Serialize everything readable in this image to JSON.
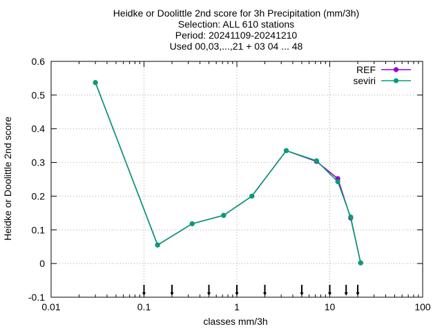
{
  "chart_data": {
    "type": "line",
    "title_lines": [
      "Heidke or Doolittle 2nd score  for 3h Precipitation (mm/3h)",
      "Selection: ALL    610 stations",
      "Period: 20241109-20241210",
      "Used 00,03,...,21 + 03 04 ... 48"
    ],
    "xlabel": "classes mm/3h",
    "ylabel": "Heidke or Doolittle 2nd score",
    "x_scale": "log",
    "xlim": [
      0.01,
      100
    ],
    "ylim": [
      -0.1,
      0.6
    ],
    "x_ticks": [
      0.01,
      0.1,
      1,
      10,
      100
    ],
    "x_tick_labels": [
      "0.01",
      "0.1",
      "1",
      "10",
      "100"
    ],
    "y_ticks": [
      -0.1,
      0,
      0.1,
      0.2,
      0.3,
      0.4,
      0.5,
      0.6
    ],
    "y_tick_labels": [
      "-0.1",
      "0",
      "0.1",
      "0.2",
      "0.3",
      "0.4",
      "0.5",
      "0.6"
    ],
    "grid": true,
    "legend_position": "top-right",
    "x": [
      0.03,
      0.14,
      0.33,
      0.72,
      1.45,
      3.4,
      7.2,
      12.2,
      16.8,
      21.5
    ],
    "series": [
      {
        "name": "REF",
        "color": "#9400d3",
        "values": [
          0.537,
          0.055,
          0.118,
          0.143,
          0.2,
          0.335,
          0.303,
          0.252,
          0.135,
          0.002
        ]
      },
      {
        "name": "seviri",
        "color": "#009e73",
        "values": [
          0.537,
          0.055,
          0.118,
          0.143,
          0.2,
          0.335,
          0.305,
          0.243,
          0.138,
          0.002
        ]
      }
    ],
    "class_markers": [
      0.1,
      0.2,
      0.5,
      1,
      2,
      5,
      10,
      15,
      20
    ]
  }
}
